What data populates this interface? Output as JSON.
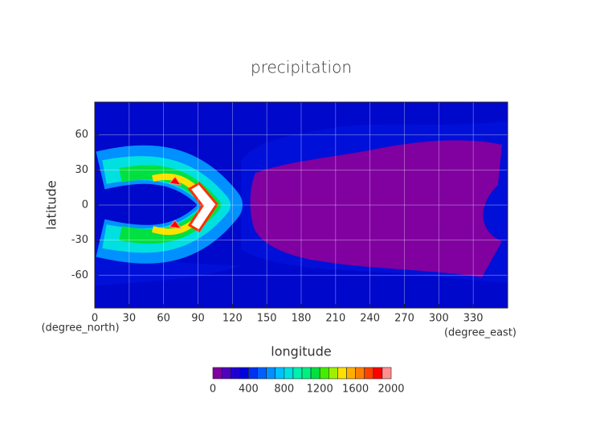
{
  "chart_data": {
    "type": "contour",
    "title": "precipitation",
    "x_label": "longitude",
    "y_label": "latitude",
    "x_unit": "(degree_east)",
    "y_unit": "(degree_north)",
    "xlim": [
      0,
      360
    ],
    "xticks": [
      0,
      30,
      60,
      90,
      120,
      150,
      180,
      210,
      240,
      270,
      300,
      330
    ],
    "ylim": [
      -88,
      88
    ],
    "yticks": [
      60,
      30,
      0,
      -30,
      -60
    ],
    "grid": true,
    "colorbar": {
      "levels": [
        0,
        100,
        200,
        300,
        400,
        500,
        600,
        700,
        800,
        900,
        1000,
        1100,
        1200,
        1300,
        1400,
        1500,
        1600,
        1700,
        1800,
        1900,
        2000
      ],
      "colors": [
        "#8000a0",
        "#5000c0",
        "#2000d0",
        "#0000e0",
        "#0030f0",
        "#0060ff",
        "#0090ff",
        "#00c0ff",
        "#00e0e0",
        "#00f0b0",
        "#00f080",
        "#00e040",
        "#40f000",
        "#a0f000",
        "#ffe000",
        "#ffb000",
        "#ff8000",
        "#ff4000",
        "#ff0000",
        "#ff9090"
      ],
      "ticks": [
        0,
        400,
        800,
        1200,
        1600,
        2000
      ]
    }
  }
}
